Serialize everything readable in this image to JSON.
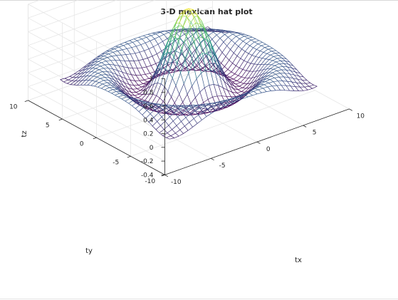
{
  "chart_data": {
    "type": "surface",
    "style": "mesh",
    "title": "3-D mexican hat plot",
    "xlabel": "tx",
    "ylabel": "ty",
    "zlabel": "tz",
    "function": "tz = sin(r)/r, r = sqrt(tx^2 + ty^2)",
    "x": {
      "min": -8,
      "max": 8,
      "step": 0.5
    },
    "y": {
      "min": -8,
      "max": 8,
      "step": 0.5
    },
    "xlim": [
      -10,
      10
    ],
    "ylim": [
      -10,
      10
    ],
    "zlim": [
      -0.4,
      1
    ],
    "xticks": [
      -10,
      -5,
      0,
      5,
      10
    ],
    "yticks": [
      -10,
      -5,
      0,
      5,
      10
    ],
    "zticks": [
      -0.4,
      -0.2,
      0,
      0.2,
      0.4,
      0.6,
      0.8,
      1
    ],
    "xtick_labels": [
      "-10",
      "-5",
      "0",
      "5",
      "10"
    ],
    "ytick_labels": [
      "-10",
      "-5",
      "0",
      "5",
      "10"
    ],
    "ztick_labels": [
      "-0.4",
      "-0.2",
      "0",
      "0.2",
      "0.4",
      "0.6",
      "0.8",
      "1"
    ],
    "grid": true,
    "colormap": "viridis",
    "colors": {
      "background": "#ffffff",
      "grid": "#e6e6e6",
      "axis": "#262626",
      "viridis": [
        "#440154",
        "#3b528b",
        "#21918c",
        "#5ec962",
        "#fde725"
      ]
    }
  }
}
